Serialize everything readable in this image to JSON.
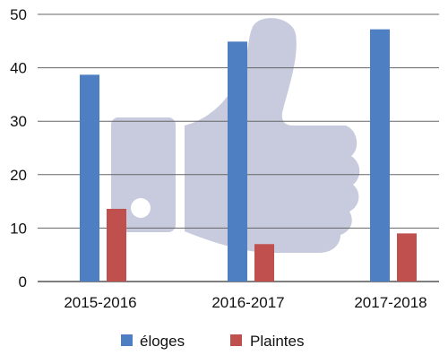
{
  "chart_data": {
    "type": "bar",
    "categories": [
      "2015-2016",
      "2016-2017",
      "2017-2018"
    ],
    "series": [
      {
        "name": "éloges",
        "values": [
          38.7,
          44.9,
          47.2
        ],
        "color": "#4f7fc3"
      },
      {
        "name": "Plaintes",
        "values": [
          13.6,
          7.0,
          9.0
        ],
        "color": "#c0504d"
      }
    ],
    "ylim": [
      0,
      50
    ],
    "yticks": [
      0,
      10,
      20,
      30,
      40,
      50
    ],
    "grid": true,
    "legend_position": "bottom",
    "background_image": "thumbs-up-icon",
    "background_color": "#c7cbdd"
  }
}
